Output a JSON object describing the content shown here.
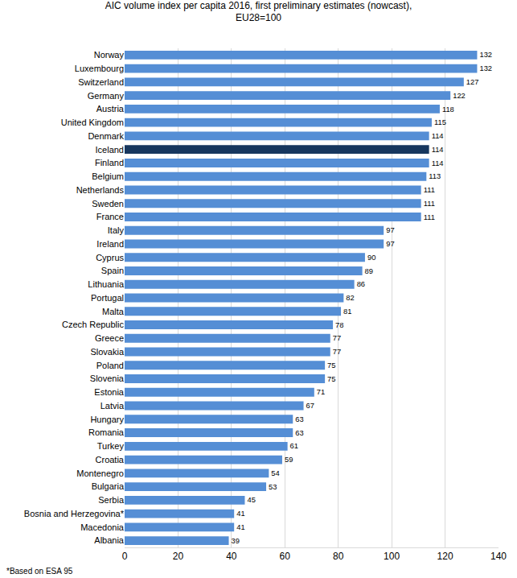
{
  "chart_data": {
    "type": "bar",
    "orientation": "horizontal",
    "title": "AIC volume index per capita 2016, first preliminary estimates (nowcast),\nEU28=100",
    "categories": [
      "Norway",
      "Luxembourg",
      "Switzerland",
      "Germany",
      "Austria",
      "United Kingdom",
      "Denmark",
      "Iceland",
      "Finland",
      "Belgium",
      "Netherlands",
      "Sweden",
      "France",
      "Italy",
      "Ireland",
      "Cyprus",
      "Spain",
      "Lithuania",
      "Portugal",
      "Malta",
      "Czech Republic",
      "Greece",
      "Slovakia",
      "Poland",
      "Slovenia",
      "Estonia",
      "Latvia",
      "Hungary",
      "Romania",
      "Turkey",
      "Croatia",
      "Montenegro",
      "Bulgaria",
      "Serbia",
      "Bosnia and Herzegovina*",
      "Macedonia",
      "Albania"
    ],
    "values": [
      132,
      132,
      127,
      122,
      118,
      115,
      114,
      114,
      114,
      113,
      111,
      111,
      111,
      97,
      97,
      90,
      89,
      86,
      82,
      81,
      78,
      77,
      77,
      75,
      75,
      71,
      67,
      63,
      63,
      61,
      59,
      54,
      53,
      45,
      41,
      41,
      39
    ],
    "colors": [
      "#558ED5",
      "#558ED5",
      "#558ED5",
      "#558ED5",
      "#558ED5",
      "#558ED5",
      "#558ED5",
      "#17375E",
      "#558ED5",
      "#558ED5",
      "#558ED5",
      "#558ED5",
      "#558ED5",
      "#558ED5",
      "#558ED5",
      "#558ED5",
      "#558ED5",
      "#558ED5",
      "#558ED5",
      "#558ED5",
      "#558ED5",
      "#558ED5",
      "#558ED5",
      "#558ED5",
      "#558ED5",
      "#558ED5",
      "#558ED5",
      "#558ED5",
      "#558ED5",
      "#558ED5",
      "#558ED5",
      "#558ED5",
      "#558ED5",
      "#558ED5",
      "#558ED5",
      "#558ED5",
      "#558ED5"
    ],
    "xlim": [
      0,
      140
    ],
    "xticks": [
      0,
      20,
      40,
      60,
      80,
      100,
      120,
      140
    ],
    "grid": true,
    "data_labels": true,
    "annotations": [
      "*Based on ESA 95"
    ]
  }
}
